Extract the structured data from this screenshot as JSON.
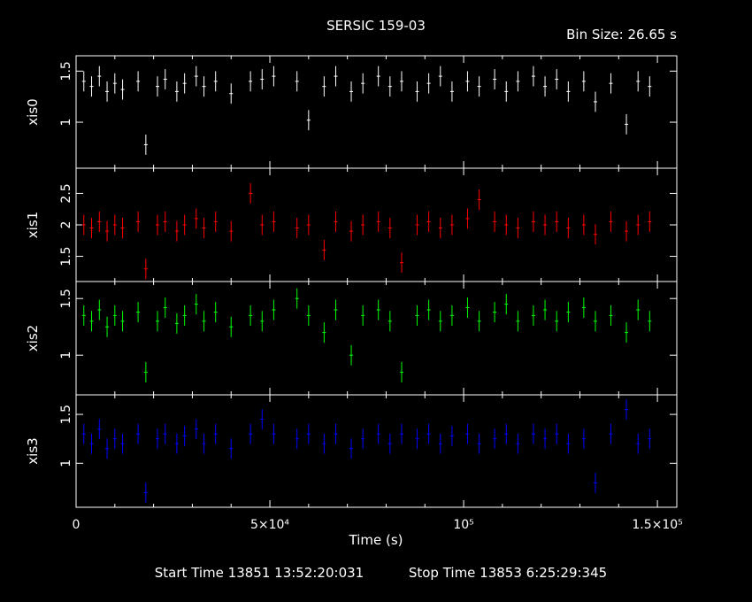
{
  "title": "SERSIC 159-03",
  "bin_size_label": "Bin Size: 26.65 s",
  "xlabel": "Time (s)",
  "start_time_label": "Start Time 13851 13:52:20:031",
  "stop_time_label": "Stop Time 13853  6:25:29:345",
  "x_tick_labels": [
    "0",
    "5×10⁴",
    "10⁵",
    "1.5×10⁵"
  ],
  "chart_data": [
    {
      "type": "scatter",
      "panel": "xis0",
      "ylabel": "xis0",
      "color": "#ffffff",
      "xlim": [
        0,
        155000
      ],
      "ylim": [
        0.55,
        1.65
      ],
      "y_tick_labels": [
        "1",
        "1.5"
      ],
      "x": [
        2000,
        4000,
        6000,
        8000,
        10000,
        12000,
        16000,
        18000,
        21000,
        23000,
        26000,
        28000,
        31000,
        33000,
        36000,
        40000,
        45000,
        48000,
        51000,
        57000,
        60000,
        64000,
        67000,
        71000,
        74000,
        78000,
        81000,
        84000,
        88000,
        91000,
        94000,
        97000,
        101000,
        104000,
        108000,
        111000,
        114000,
        118000,
        121000,
        124000,
        127000,
        131000,
        134000,
        138000,
        142000,
        145000,
        148000
      ],
      "y": [
        1.4,
        1.35,
        1.45,
        1.3,
        1.38,
        1.32,
        1.4,
        0.78,
        1.35,
        1.42,
        1.3,
        1.38,
        1.45,
        1.35,
        1.4,
        1.28,
        1.4,
        1.42,
        1.45,
        1.4,
        1.02,
        1.35,
        1.45,
        1.3,
        1.38,
        1.45,
        1.35,
        1.4,
        1.3,
        1.38,
        1.45,
        1.3,
        1.4,
        1.35,
        1.42,
        1.3,
        1.4,
        1.45,
        1.35,
        1.42,
        1.3,
        1.4,
        1.2,
        1.38,
        0.98,
        1.4,
        1.35
      ]
    },
    {
      "type": "scatter",
      "panel": "xis1",
      "ylabel": "xis1",
      "color": "#ff0000",
      "xlim": [
        0,
        155000
      ],
      "ylim": [
        1.1,
        2.9
      ],
      "y_tick_labels": [
        "1.5",
        "2",
        "2.5"
      ],
      "x": [
        2000,
        4000,
        6000,
        8000,
        10000,
        12000,
        16000,
        18000,
        21000,
        23000,
        26000,
        28000,
        31000,
        33000,
        36000,
        40000,
        45000,
        48000,
        51000,
        57000,
        60000,
        64000,
        67000,
        71000,
        74000,
        78000,
        81000,
        84000,
        88000,
        91000,
        94000,
        97000,
        101000,
        104000,
        108000,
        111000,
        114000,
        118000,
        121000,
        124000,
        127000,
        131000,
        134000,
        138000,
        142000,
        145000,
        148000
      ],
      "y": [
        2.0,
        1.95,
        2.05,
        1.9,
        2.0,
        1.95,
        2.05,
        1.3,
        2.0,
        2.05,
        1.9,
        2.0,
        2.1,
        1.95,
        2.05,
        1.9,
        2.5,
        2.0,
        2.05,
        1.95,
        2.0,
        1.6,
        2.05,
        1.9,
        2.0,
        2.05,
        1.95,
        1.4,
        2.0,
        2.05,
        1.95,
        2.0,
        2.1,
        2.4,
        2.05,
        2.0,
        1.95,
        2.05,
        2.0,
        2.05,
        1.95,
        2.0,
        1.85,
        2.05,
        1.9,
        2.0,
        2.05
      ]
    },
    {
      "type": "scatter",
      "panel": "xis2",
      "ylabel": "xis2",
      "color": "#00ff00",
      "xlim": [
        0,
        155000
      ],
      "ylim": [
        0.65,
        1.65
      ],
      "y_tick_labels": [
        "1",
        "1.5"
      ],
      "x": [
        2000,
        4000,
        6000,
        8000,
        10000,
        12000,
        16000,
        18000,
        21000,
        23000,
        26000,
        28000,
        31000,
        33000,
        36000,
        40000,
        45000,
        48000,
        51000,
        57000,
        60000,
        64000,
        67000,
        71000,
        74000,
        78000,
        81000,
        84000,
        88000,
        91000,
        94000,
        97000,
        101000,
        104000,
        108000,
        111000,
        114000,
        118000,
        121000,
        124000,
        127000,
        131000,
        134000,
        138000,
        142000,
        145000,
        148000
      ],
      "y": [
        1.35,
        1.3,
        1.4,
        1.25,
        1.35,
        1.3,
        1.38,
        0.85,
        1.3,
        1.42,
        1.28,
        1.35,
        1.45,
        1.3,
        1.38,
        1.25,
        1.35,
        1.3,
        1.4,
        1.5,
        1.35,
        1.2,
        1.4,
        1.0,
        1.35,
        1.4,
        1.3,
        0.85,
        1.35,
        1.4,
        1.3,
        1.35,
        1.42,
        1.3,
        1.38,
        1.45,
        1.3,
        1.35,
        1.4,
        1.3,
        1.38,
        1.42,
        1.3,
        1.35,
        1.2,
        1.4,
        1.3
      ]
    },
    {
      "type": "scatter",
      "panel": "xis3",
      "ylabel": "xis3",
      "color": "#0000ff",
      "xlim": [
        0,
        155000
      ],
      "ylim": [
        0.55,
        1.7
      ],
      "y_tick_labels": [
        "1",
        "1.5"
      ],
      "x": [
        2000,
        4000,
        6000,
        8000,
        10000,
        12000,
        16000,
        18000,
        21000,
        23000,
        26000,
        28000,
        31000,
        33000,
        36000,
        40000,
        45000,
        48000,
        51000,
        57000,
        60000,
        64000,
        67000,
        71000,
        74000,
        78000,
        81000,
        84000,
        88000,
        91000,
        94000,
        97000,
        101000,
        104000,
        108000,
        111000,
        114000,
        118000,
        121000,
        124000,
        127000,
        131000,
        134000,
        138000,
        142000,
        145000,
        148000
      ],
      "y": [
        1.3,
        1.2,
        1.35,
        1.15,
        1.25,
        1.2,
        1.3,
        0.7,
        1.25,
        1.3,
        1.2,
        1.28,
        1.35,
        1.2,
        1.3,
        1.15,
        1.3,
        1.45,
        1.3,
        1.25,
        1.3,
        1.2,
        1.3,
        1.15,
        1.25,
        1.3,
        1.2,
        1.3,
        1.25,
        1.3,
        1.2,
        1.28,
        1.3,
        1.2,
        1.25,
        1.3,
        1.2,
        1.3,
        1.25,
        1.3,
        1.2,
        1.25,
        0.8,
        1.3,
        1.55,
        1.2,
        1.25
      ]
    }
  ]
}
